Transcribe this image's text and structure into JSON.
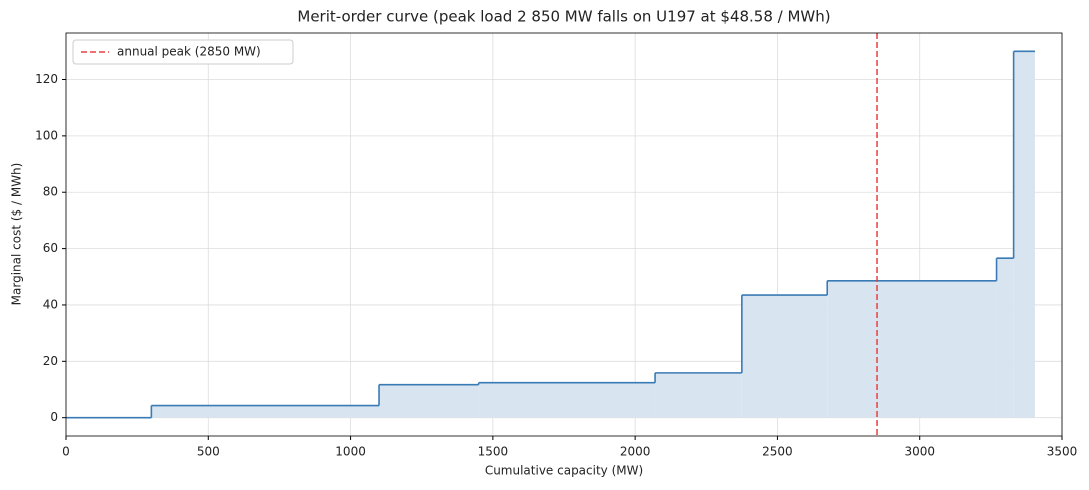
{
  "chart_data": {
    "type": "step",
    "title": "Merit-order curve  (peak load 2 850 MW falls on U197 at $48.58 / MWh)",
    "x_label": "Cumulative capacity (MW)",
    "y_label": "Marginal cost ($ / MWh)",
    "x": [
      0,
      300,
      1100,
      1450,
      2070,
      2375,
      2675,
      3270,
      3330,
      3405
    ],
    "values": [
      0,
      4.3,
      11.7,
      12.4,
      15.9,
      43.5,
      48.58,
      56.6,
      130,
      130
    ],
    "color": "#3a7ab5",
    "fill_color": "#d8e5f0",
    "xlim": [
      0,
      3500
    ],
    "xticks": [
      0,
      500,
      1000,
      1500,
      2000,
      2500,
      3000,
      3500
    ],
    "ylim": [
      -6.5,
      136.5
    ],
    "yticks": [
      0,
      20,
      40,
      60,
      80,
      100,
      120
    ],
    "grid": true,
    "peak": {
      "x": 2850,
      "label": "annual peak (2850 MW)",
      "color": "#e84040"
    },
    "legend": "upper left"
  }
}
